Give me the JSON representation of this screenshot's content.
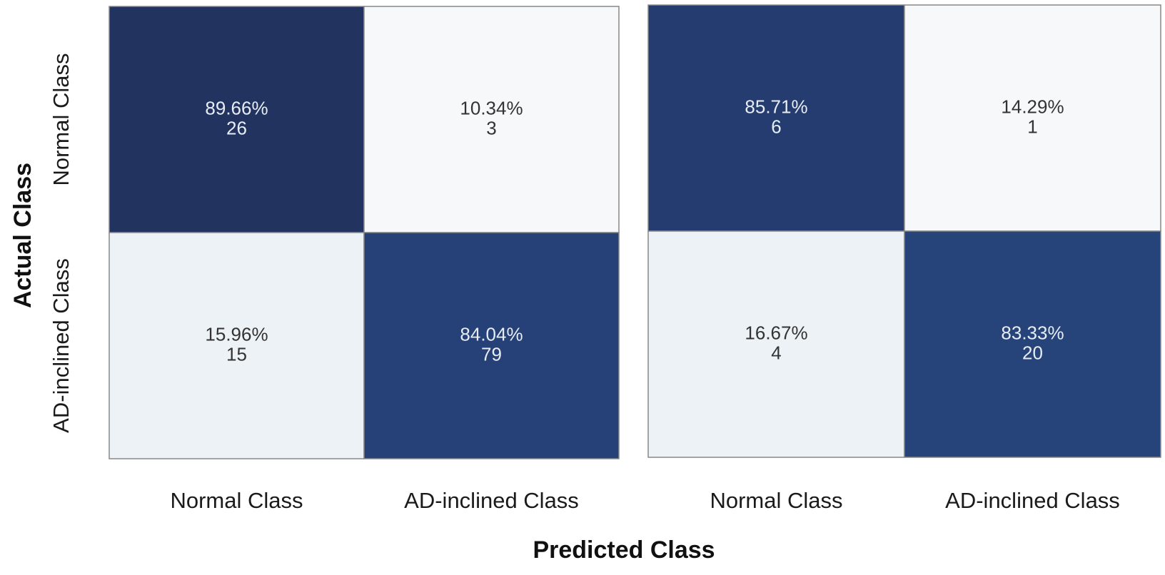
{
  "chart_data": [
    {
      "type": "heatmap",
      "x_categories": [
        "Normal Class",
        "AD-inclined Class"
      ],
      "y_categories": [
        "Normal Class",
        "AD-inclined Class"
      ],
      "cells": [
        [
          {
            "percent": "89.66%",
            "count": "26",
            "fraction": 0.8966
          },
          {
            "percent": "10.34%",
            "count": "3",
            "fraction": 0.1034
          }
        ],
        [
          {
            "percent": "15.96%",
            "count": "15",
            "fraction": 0.1596
          },
          {
            "percent": "84.04%",
            "count": "79",
            "fraction": 0.8404
          }
        ]
      ]
    },
    {
      "type": "heatmap",
      "x_categories": [
        "Normal Class",
        "AD-inclined Class"
      ],
      "y_categories": [
        "Normal Class",
        "AD-inclined Class"
      ],
      "cells": [
        [
          {
            "percent": "85.71%",
            "count": "6",
            "fraction": 0.8571
          },
          {
            "percent": "14.29%",
            "count": "1",
            "fraction": 0.1429
          }
        ],
        [
          {
            "percent": "16.67%",
            "count": "4",
            "fraction": 0.1667
          },
          {
            "percent": "83.33%",
            "count": "20",
            "fraction": 0.8333
          }
        ]
      ]
    }
  ],
  "ylabel": "Actual Class",
  "xlabel": "Predicted Class",
  "colors": {
    "high": "#22335f",
    "mid_high": "#26447c",
    "low": "#f7f8f9",
    "low_tint": "#edf2f7",
    "light_text": "#e8ecf4",
    "dark_text": "#333333",
    "border": "#888888"
  }
}
